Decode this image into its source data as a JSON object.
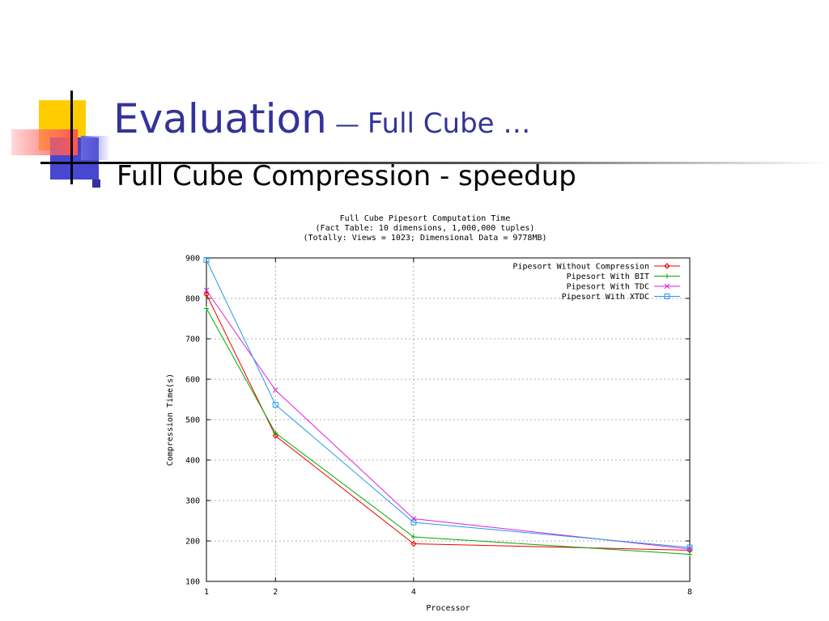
{
  "slide": {
    "title": "Evaluation",
    "title_separator": "—",
    "subtitle": "Full Cube …",
    "bullet": "Full Cube Compression - speedup",
    "colors": {
      "title": "#333399",
      "deco_yellow": "#ffcc00",
      "deco_blue": "#3333cc",
      "deco_red": "#ff5555"
    }
  },
  "chart_data": {
    "type": "line",
    "title_lines": [
      "Full Cube Pipesort Computation Time",
      "(Fact Table: 10 dimensions, 1,000,000 tuples)",
      "(Totally: Views = 1023; Dimensional Data = 9778MB)"
    ],
    "xlabel": "Processor",
    "ylabel": "Compression Time(s)",
    "x": [
      1,
      2,
      4,
      8
    ],
    "xlim": [
      1,
      8
    ],
    "ylim": [
      100,
      900
    ],
    "xticks": [
      1,
      2,
      4,
      8
    ],
    "yticks": [
      100,
      200,
      300,
      400,
      500,
      600,
      700,
      800,
      900
    ],
    "grid": true,
    "legend_position": "top-right",
    "series": [
      {
        "name": "Pipesort Without Compression",
        "color": "#ee0000",
        "marker": "diamond",
        "values": [
          810,
          460,
          193,
          177
        ]
      },
      {
        "name": "Pipesort With BIT",
        "color": "#00aa00",
        "marker": "plus",
        "values": [
          775,
          467,
          210,
          167
        ]
      },
      {
        "name": "Pipesort With TDC",
        "color": "#dd22dd",
        "marker": "x",
        "values": [
          820,
          573,
          255,
          180
        ]
      },
      {
        "name": "Pipesort With XTDC",
        "color": "#2299ee",
        "marker": "square",
        "values": [
          895,
          537,
          246,
          184
        ]
      }
    ]
  }
}
